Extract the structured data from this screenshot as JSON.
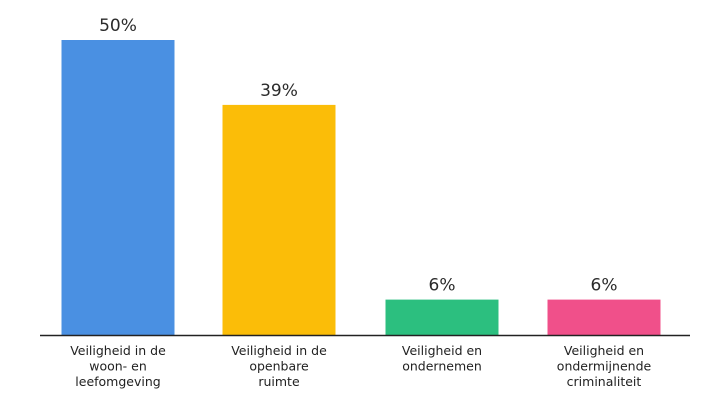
{
  "chart_data": {
    "type": "bar",
    "title": "",
    "xlabel": "",
    "ylabel": "",
    "categories": [
      "Veiligheid in de woon- en leefomgeving",
      "Veiligheid in de openbare ruimte",
      "Veiligheid en ondernemen",
      "Veiligheid en ondermijnende criminaliteit"
    ],
    "category_lines": [
      [
        "Veiligheid in de",
        "woon- en",
        "leefomgeving"
      ],
      [
        "Veiligheid in de",
        "openbare",
        "ruimte"
      ],
      [
        "Veiligheid en",
        "ondernemen"
      ],
      [
        "Veiligheid en",
        "ondermijnende",
        "criminaliteit"
      ]
    ],
    "values": [
      50,
      39,
      6,
      6
    ],
    "value_labels": [
      "50%",
      "39%",
      "6%",
      "6%"
    ],
    "colors": [
      "#4a90e2",
      "#fbbd08",
      "#2cbf7f",
      "#f0508a"
    ],
    "ylim": [
      0,
      50
    ],
    "grid": false,
    "legend": "none"
  }
}
